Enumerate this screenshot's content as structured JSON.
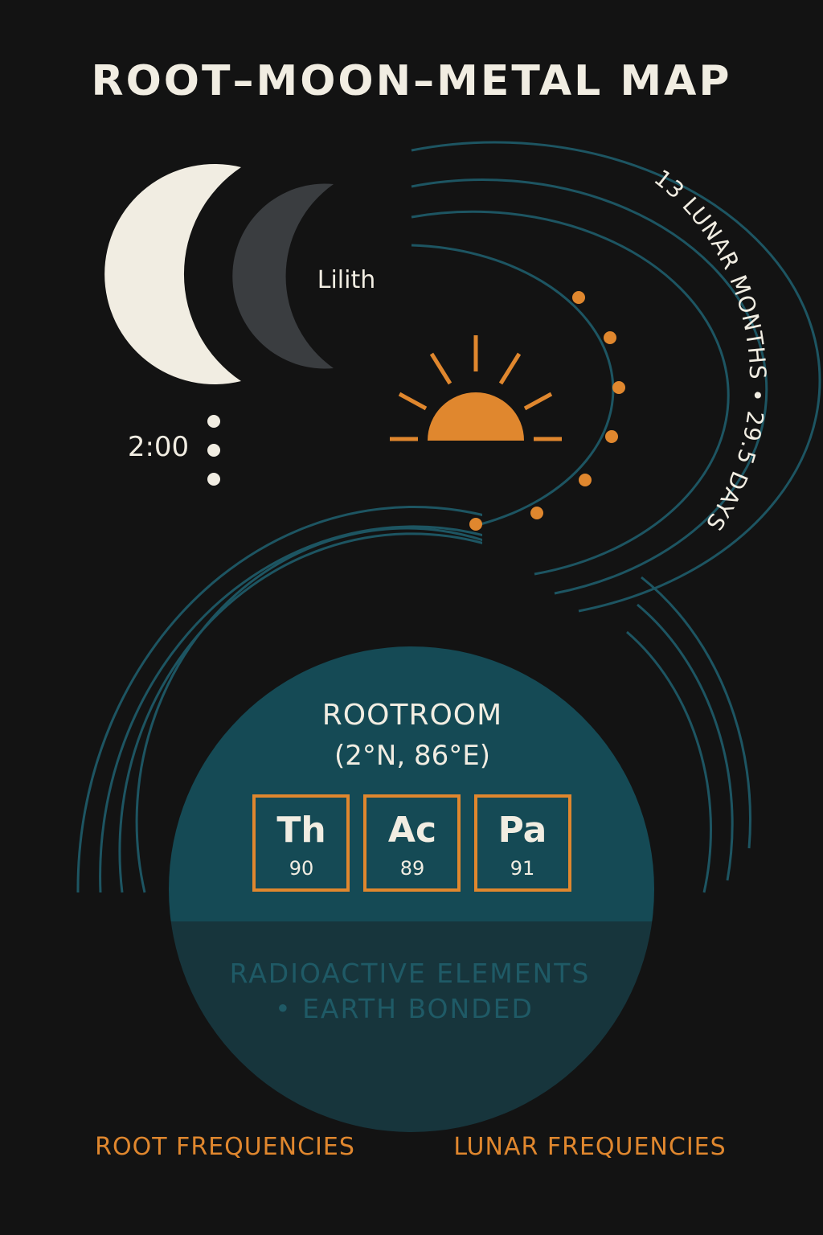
{
  "title": "ROOT–MOON–METAL MAP",
  "moon": {
    "label": "Lilith",
    "time": "2:00"
  },
  "cycle_label": "13 LUNAR MONTHS • 29.5 DAYS",
  "rootroom": {
    "name": "ROOTROOM",
    "coords": "(2°N, 86°E)",
    "elements": [
      {
        "symbol": "Th",
        "number": "90"
      },
      {
        "symbol": "Ac",
        "number": "89"
      },
      {
        "symbol": "Pa",
        "number": "91"
      }
    ],
    "caption_line1": "RADIOACTIVE ELEMENTS",
    "caption_line2": "• EARTH BONDED"
  },
  "footer": {
    "left": "ROOT FREQUENCIES",
    "right": "LUNAR FREQUENCIES"
  },
  "colors": {
    "background": "#131313",
    "cream": "#f1ede2",
    "orange": "#e0872e",
    "teal_line": "#1d5562",
    "teal_fill": "#154a55",
    "teal_dark": "#17353c",
    "dark_moon": "#3a3d40"
  }
}
